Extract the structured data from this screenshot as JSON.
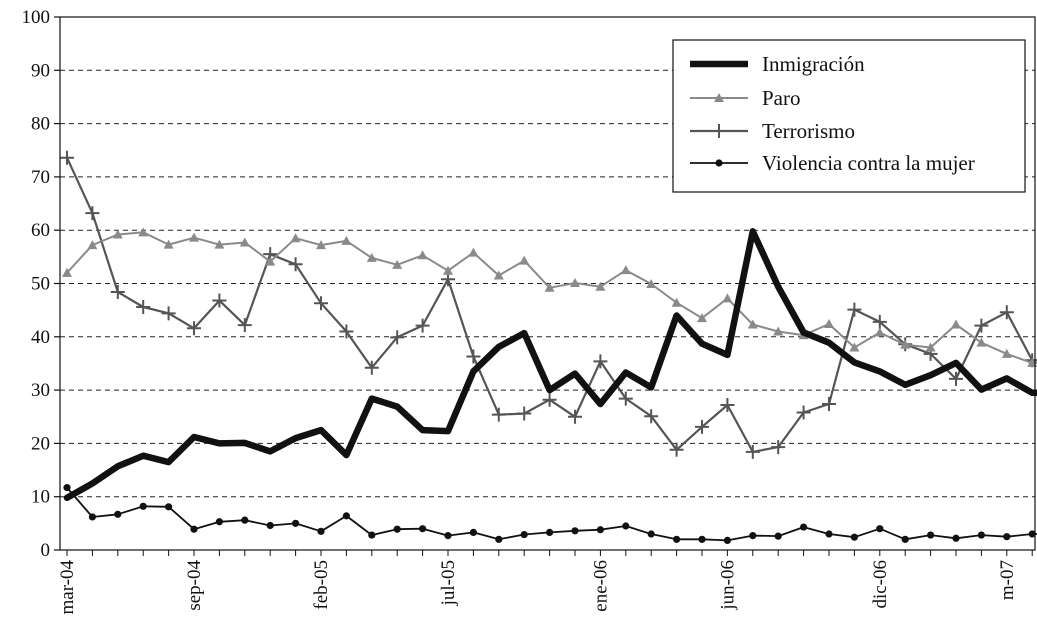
{
  "chart_data": {
    "type": "line",
    "title": "",
    "xlabel": "",
    "ylabel": "",
    "ylim": [
      0,
      100
    ],
    "yticks": [
      0,
      10,
      20,
      30,
      40,
      50,
      60,
      70,
      80,
      90,
      100
    ],
    "grid": "horizontal dashed",
    "legend_position": "top-right",
    "x_tick_labels": [
      {
        "index": 0,
        "label": "mar-04"
      },
      {
        "index": 5,
        "label": "sep-04"
      },
      {
        "index": 10,
        "label": "feb-05"
      },
      {
        "index": 15,
        "label": "jul-05"
      },
      {
        "index": 21,
        "label": "ene-06"
      },
      {
        "index": 26,
        "label": "jun-06"
      },
      {
        "index": 32,
        "label": "dic-06"
      },
      {
        "index": 37,
        "label": "m-07"
      }
    ],
    "point_count": 40,
    "series": [
      {
        "name": "Inmigración",
        "color": "#111111",
        "marker": "none",
        "values": [
          9.8,
          12.5,
          15.7,
          17.7,
          16.5,
          21.2,
          20.0,
          20.1,
          18.5,
          21.0,
          22.5,
          17.8,
          28.4,
          26.9,
          22.5,
          22.3,
          33.5,
          38.1,
          40.7,
          30.0,
          33.1,
          27.4,
          33.3,
          30.5,
          44.0,
          38.7,
          36.6,
          59.8,
          49.4,
          40.8,
          38.9,
          35.2,
          33.5,
          31.0,
          32.8,
          35.1,
          30.1,
          32.2,
          29.5,
          29.5
        ]
      },
      {
        "name": "Paro",
        "color": "#8a8a8a",
        "marker": "triangle",
        "values": [
          52.0,
          57.2,
          59.2,
          59.6,
          57.3,
          58.6,
          57.3,
          57.7,
          54.1,
          58.5,
          57.2,
          58.0,
          54.8,
          53.5,
          55.3,
          52.4,
          55.8,
          51.5,
          54.3,
          49.2,
          50.1,
          49.4,
          52.5,
          49.9,
          46.4,
          43.5,
          47.2,
          42.3,
          41.0,
          40.3,
          42.4,
          38.0,
          40.8,
          38.5,
          38.0,
          42.3,
          38.9,
          36.8,
          35.1,
          35.1
        ]
      },
      {
        "name": "Terrorismo",
        "color": "#555555",
        "marker": "plus",
        "values": [
          73.6,
          63.2,
          48.4,
          45.6,
          44.4,
          41.6,
          46.8,
          42.2,
          55.5,
          53.6,
          46.3,
          41.0,
          34.2,
          39.9,
          42.1,
          50.8,
          36.3,
          25.4,
          25.6,
          28.2,
          25.0,
          35.4,
          28.4,
          25.1,
          18.8,
          23.1,
          27.2,
          18.4,
          19.3,
          25.8,
          27.4,
          45.1,
          42.8,
          38.6,
          36.8,
          32.1,
          42.1,
          44.6,
          35.6,
          35.6
        ]
      },
      {
        "name": "Violencia contra la mujer",
        "color": "#111111",
        "marker": "dot",
        "values": [
          11.7,
          6.2,
          6.7,
          8.2,
          8.1,
          3.9,
          5.3,
          5.6,
          4.6,
          5.0,
          3.5,
          6.4,
          2.8,
          3.9,
          4.0,
          2.7,
          3.3,
          2.0,
          2.9,
          3.3,
          3.6,
          3.8,
          4.5,
          3.0,
          2.0,
          2.0,
          1.8,
          2.7,
          2.6,
          4.3,
          3.0,
          2.4,
          4.0,
          2.0,
          2.8,
          2.2,
          2.8,
          2.5,
          3.0,
          3.0
        ]
      }
    ]
  }
}
